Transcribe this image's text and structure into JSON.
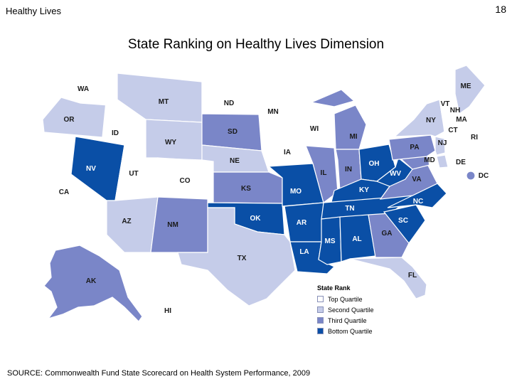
{
  "header": {
    "section_title": "Healthy Lives",
    "page_number": "18"
  },
  "title": "State Ranking on Healthy Lives Dimension",
  "source": "SOURCE: Commonwealth Fund State Scorecard on Health System Performance, 2009",
  "colors": {
    "top": "#ffffff",
    "second": "#c5cce9",
    "third": "#7a86c8",
    "bottom": "#0a4fa6",
    "border": "#b9bedc"
  },
  "legend": {
    "title": "State Rank",
    "items": [
      {
        "label": "Top Quartile",
        "key": "top"
      },
      {
        "label": "Second Quartile",
        "key": "second"
      },
      {
        "label": "Third Quartile",
        "key": "third"
      },
      {
        "label": "Bottom Quartile",
        "key": "bottom"
      }
    ]
  },
  "states": [
    {
      "abbr": "WA",
      "quartile": "top"
    },
    {
      "abbr": "OR",
      "quartile": "second"
    },
    {
      "abbr": "CA",
      "quartile": "top"
    },
    {
      "abbr": "ID",
      "quartile": "top"
    },
    {
      "abbr": "NV",
      "quartile": "bottom"
    },
    {
      "abbr": "MT",
      "quartile": "second"
    },
    {
      "abbr": "WY",
      "quartile": "second"
    },
    {
      "abbr": "UT",
      "quartile": "top"
    },
    {
      "abbr": "CO",
      "quartile": "top"
    },
    {
      "abbr": "AZ",
      "quartile": "second"
    },
    {
      "abbr": "NM",
      "quartile": "third"
    },
    {
      "abbr": "ND",
      "quartile": "top"
    },
    {
      "abbr": "SD",
      "quartile": "third"
    },
    {
      "abbr": "NE",
      "quartile": "second"
    },
    {
      "abbr": "KS",
      "quartile": "third"
    },
    {
      "abbr": "OK",
      "quartile": "bottom"
    },
    {
      "abbr": "TX",
      "quartile": "second"
    },
    {
      "abbr": "MN",
      "quartile": "top"
    },
    {
      "abbr": "IA",
      "quartile": "top"
    },
    {
      "abbr": "MO",
      "quartile": "bottom"
    },
    {
      "abbr": "AR",
      "quartile": "bottom"
    },
    {
      "abbr": "LA",
      "quartile": "bottom"
    },
    {
      "abbr": "WI",
      "quartile": "top"
    },
    {
      "abbr": "IL",
      "quartile": "third"
    },
    {
      "abbr": "MI",
      "quartile": "third"
    },
    {
      "abbr": "IN",
      "quartile": "third"
    },
    {
      "abbr": "OH",
      "quartile": "bottom"
    },
    {
      "abbr": "KY",
      "quartile": "bottom"
    },
    {
      "abbr": "TN",
      "quartile": "bottom"
    },
    {
      "abbr": "MS",
      "quartile": "bottom"
    },
    {
      "abbr": "AL",
      "quartile": "bottom"
    },
    {
      "abbr": "GA",
      "quartile": "third"
    },
    {
      "abbr": "FL",
      "quartile": "second"
    },
    {
      "abbr": "SC",
      "quartile": "bottom"
    },
    {
      "abbr": "NC",
      "quartile": "bottom"
    },
    {
      "abbr": "VA",
      "quartile": "third"
    },
    {
      "abbr": "WV",
      "quartile": "bottom"
    },
    {
      "abbr": "PA",
      "quartile": "third"
    },
    {
      "abbr": "NY",
      "quartile": "second"
    },
    {
      "abbr": "ME",
      "quartile": "second"
    },
    {
      "abbr": "VT",
      "quartile": "top"
    },
    {
      "abbr": "NH",
      "quartile": "top"
    },
    {
      "abbr": "MA",
      "quartile": "top"
    },
    {
      "abbr": "RI",
      "quartile": "top"
    },
    {
      "abbr": "CT",
      "quartile": "top"
    },
    {
      "abbr": "NJ",
      "quartile": "second"
    },
    {
      "abbr": "DE",
      "quartile": "second"
    },
    {
      "abbr": "MD",
      "quartile": "third"
    },
    {
      "abbr": "DC",
      "quartile": "third"
    },
    {
      "abbr": "AK",
      "quartile": "third"
    },
    {
      "abbr": "HI",
      "quartile": "top"
    }
  ]
}
